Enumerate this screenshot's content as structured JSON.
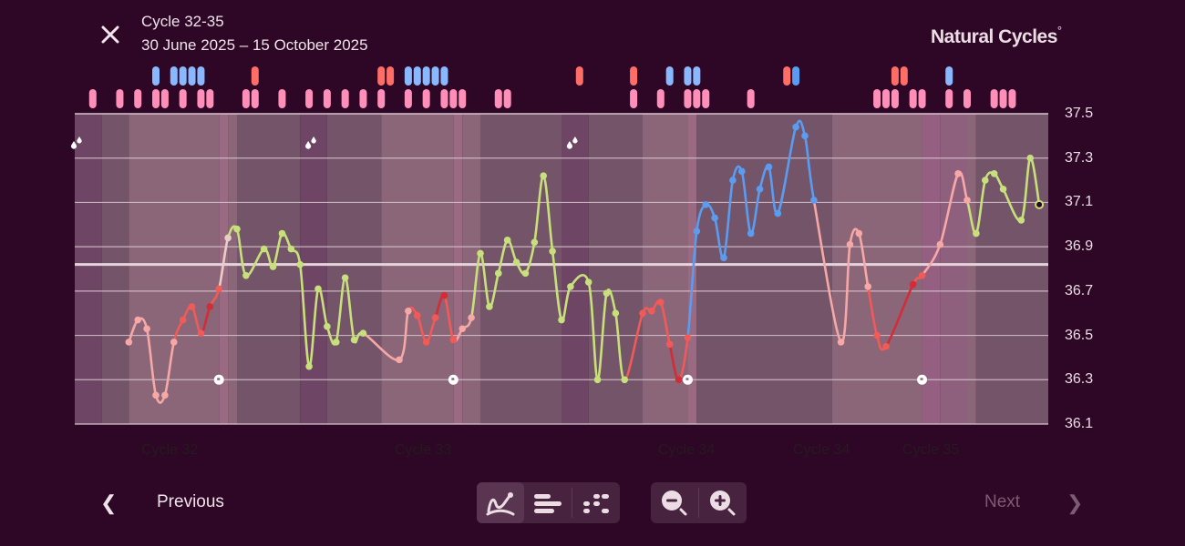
{
  "header": {
    "title": "Cycle 32-35",
    "subtitle": "30 June 2025 – 15 October 2025",
    "logo": "Natural Cycles",
    "logo_mark": "°",
    "close_icon": "close-icon"
  },
  "footer": {
    "previous_label": "Previous",
    "next_label": "Next",
    "next_enabled": false,
    "view_buttons": [
      {
        "name": "graph-view",
        "icon": "line-graph-icon",
        "active": true
      },
      {
        "name": "bars-view",
        "icon": "bars-icon",
        "active": false
      },
      {
        "name": "dots-view",
        "icon": "dots-icon",
        "active": false
      }
    ],
    "zoom_buttons": [
      {
        "name": "zoom-out",
        "icon": "zoom-out-icon"
      },
      {
        "name": "zoom-in",
        "icon": "zoom-in-icon"
      }
    ]
  },
  "colors": {
    "background": "#2e0626",
    "pink": "#f6a8a6",
    "red": "#f15a57",
    "darkred": "#d32c37",
    "green": "#c8e07c",
    "blue": "#5b9cf0",
    "beige": "#e7cfc6",
    "marker_pink": "#ff8fb8",
    "marker_red": "#ff6e66",
    "marker_blue": "#8ab8ff",
    "marker_darkblue": "#5b9cf0",
    "band_period": "#6e4565",
    "band_infertile": "#735468",
    "band_fertile": "#8a6678",
    "band_ovulation": "#9a6a82",
    "band_pink": "#955f82"
  },
  "chart_data": {
    "type": "line",
    "ylim": [
      36.1,
      37.5
    ],
    "yticks": [
      "37.5",
      "37.3",
      "37.1",
      "36.9",
      "36.7",
      "36.5",
      "36.3",
      "36.1"
    ],
    "coverline": 36.82,
    "grid": true,
    "xlim": [
      "2025-06-30",
      "2025-10-15"
    ],
    "cycle_labels": [
      "Cycle 32",
      "Cycle 33",
      "Cycle 34",
      "Cycle 34",
      "Cycle 35"
    ],
    "phases": [
      [
        "2025-06-30",
        "period"
      ],
      [
        "2025-07-03",
        "infertile"
      ],
      [
        "2025-07-06",
        "fertile"
      ],
      [
        "2025-07-16",
        "ovulation"
      ],
      [
        "2025-07-17",
        "fertile"
      ],
      [
        "2025-07-18",
        "infertile"
      ],
      [
        "2025-07-25",
        "period"
      ],
      [
        "2025-07-28",
        "infertile"
      ],
      [
        "2025-08-03",
        "fertile"
      ],
      [
        "2025-08-11",
        "ovulation"
      ],
      [
        "2025-08-12",
        "fertile"
      ],
      [
        "2025-08-14",
        "infertile"
      ],
      [
        "2025-08-23",
        "period"
      ],
      [
        "2025-08-26",
        "infertile"
      ],
      [
        "2025-09-01",
        "fertile"
      ],
      [
        "2025-09-06",
        "ovulation"
      ],
      [
        "2025-09-07",
        "infertile"
      ],
      [
        "2025-09-22",
        "fertile"
      ],
      [
        "2025-10-02",
        "pink"
      ],
      [
        "2025-10-04",
        "pinkish"
      ],
      [
        "2025-10-07",
        "fertile"
      ],
      [
        "2025-10-08",
        "infertile"
      ],
      [
        "2025-10-16",
        "end"
      ]
    ],
    "period_days": [
      "2025-06-30",
      "2025-07-26",
      "2025-08-24"
    ],
    "ovulation_days": [
      "2025-07-16",
      "2025-08-11",
      "2025-09-06",
      "2025-10-02"
    ],
    "points": [
      [
        "2025-07-06",
        36.47,
        "pink"
      ],
      [
        "2025-07-07",
        36.57,
        "pink"
      ],
      [
        "2025-07-08",
        36.53,
        "pink"
      ],
      [
        "2025-07-09",
        36.23,
        "pink"
      ],
      [
        "2025-07-10",
        36.23,
        "pink"
      ],
      [
        "2025-07-11",
        36.47,
        "pink"
      ],
      [
        "2025-07-12",
        36.57,
        "red"
      ],
      [
        "2025-07-13",
        36.63,
        "red"
      ],
      [
        "2025-07-14",
        36.51,
        "red"
      ],
      [
        "2025-07-15",
        36.63,
        "darkred"
      ],
      [
        "2025-07-16",
        36.71,
        "red"
      ],
      [
        "2025-07-17",
        36.94,
        "beige"
      ],
      [
        "2025-07-18",
        36.98,
        "green"
      ],
      [
        "2025-07-19",
        36.77,
        "green"
      ],
      [
        "2025-07-21",
        36.89,
        "green"
      ],
      [
        "2025-07-22",
        36.81,
        "green"
      ],
      [
        "2025-07-23",
        36.96,
        "green"
      ],
      [
        "2025-07-24",
        36.89,
        "green"
      ],
      [
        "2025-07-25",
        36.82,
        "green"
      ],
      [
        "2025-07-26",
        36.36,
        "green"
      ],
      [
        "2025-07-27",
        36.71,
        "green"
      ],
      [
        "2025-07-28",
        36.54,
        "green"
      ],
      [
        "2025-07-29",
        36.47,
        "green"
      ],
      [
        "2025-07-30",
        36.76,
        "green"
      ],
      [
        "2025-07-31",
        36.48,
        "green"
      ],
      [
        "2025-08-01",
        36.51,
        "green"
      ],
      [
        "2025-08-05",
        36.39,
        "pink"
      ],
      [
        "2025-08-06",
        36.61,
        "pink"
      ],
      [
        "2025-08-07",
        36.59,
        "red"
      ],
      [
        "2025-08-08",
        36.47,
        "red"
      ],
      [
        "2025-08-09",
        36.58,
        "red"
      ],
      [
        "2025-08-10",
        36.68,
        "darkred"
      ],
      [
        "2025-08-11",
        36.48,
        "red"
      ],
      [
        "2025-08-12",
        36.53,
        "pink"
      ],
      [
        "2025-08-13",
        36.58,
        "pink"
      ],
      [
        "2025-08-14",
        36.87,
        "green"
      ],
      [
        "2025-08-15",
        36.63,
        "green"
      ],
      [
        "2025-08-16",
        36.78,
        "green"
      ],
      [
        "2025-08-17",
        36.93,
        "green"
      ],
      [
        "2025-08-18",
        36.83,
        "green"
      ],
      [
        "2025-08-19",
        36.78,
        "green"
      ],
      [
        "2025-08-20",
        36.92,
        "green"
      ],
      [
        "2025-08-21",
        37.22,
        "green"
      ],
      [
        "2025-08-22",
        36.88,
        "green"
      ],
      [
        "2025-08-23",
        36.57,
        "green"
      ],
      [
        "2025-08-24",
        36.72,
        "green"
      ],
      [
        "2025-08-26",
        36.74,
        "green"
      ],
      [
        "2025-08-27",
        36.3,
        "green"
      ],
      [
        "2025-08-28",
        36.69,
        "green"
      ],
      [
        "2025-08-29",
        36.6,
        "green"
      ],
      [
        "2025-08-30",
        36.3,
        "green"
      ],
      [
        "2025-09-01",
        36.6,
        "red"
      ],
      [
        "2025-09-02",
        36.61,
        "red"
      ],
      [
        "2025-09-03",
        36.65,
        "red"
      ],
      [
        "2025-09-04",
        36.46,
        "red"
      ],
      [
        "2025-09-05",
        36.3,
        "darkred"
      ],
      [
        "2025-09-06",
        36.49,
        "red"
      ],
      [
        "2025-09-07",
        36.97,
        "blue"
      ],
      [
        "2025-09-08",
        37.09,
        "blue"
      ],
      [
        "2025-09-09",
        37.03,
        "blue"
      ],
      [
        "2025-09-10",
        36.85,
        "blue"
      ],
      [
        "2025-09-11",
        37.2,
        "blue"
      ],
      [
        "2025-09-12",
        37.24,
        "blue"
      ],
      [
        "2025-09-13",
        36.96,
        "blue"
      ],
      [
        "2025-09-14",
        37.16,
        "blue"
      ],
      [
        "2025-09-15",
        37.26,
        "blue"
      ],
      [
        "2025-09-16",
        37.05,
        "blue"
      ],
      [
        "2025-09-18",
        37.44,
        "blue"
      ],
      [
        "2025-09-19",
        37.4,
        "blue"
      ],
      [
        "2025-09-20",
        37.11,
        "blue"
      ],
      [
        "2025-09-23",
        36.47,
        "pink"
      ],
      [
        "2025-09-24",
        36.91,
        "pink"
      ],
      [
        "2025-09-25",
        36.96,
        "pink"
      ],
      [
        "2025-09-26",
        36.72,
        "pink"
      ],
      [
        "2025-09-27",
        36.5,
        "red"
      ],
      [
        "2025-09-28",
        36.45,
        "red"
      ],
      [
        "2025-10-01",
        36.73,
        "darkred"
      ],
      [
        "2025-10-02",
        36.77,
        "red"
      ],
      [
        "2025-10-04",
        36.91,
        "pink"
      ],
      [
        "2025-10-06",
        37.23,
        "pink"
      ],
      [
        "2025-10-07",
        37.11,
        "pink"
      ],
      [
        "2025-10-08",
        36.96,
        "green"
      ],
      [
        "2025-10-09",
        37.2,
        "green"
      ],
      [
        "2025-10-10",
        37.23,
        "green"
      ],
      [
        "2025-10-11",
        37.16,
        "green"
      ],
      [
        "2025-10-13",
        37.02,
        "green"
      ],
      [
        "2025-10-14",
        37.3,
        "green"
      ],
      [
        "2025-10-15",
        37.09,
        "today"
      ]
    ],
    "markers_top": [
      [
        "2025-07-09",
        "blue"
      ],
      [
        "2025-07-11",
        "blue"
      ],
      [
        "2025-07-12",
        "blue"
      ],
      [
        "2025-07-13",
        "blue"
      ],
      [
        "2025-07-14",
        "blue"
      ],
      [
        "2025-07-20",
        "red"
      ],
      [
        "2025-08-03",
        "red"
      ],
      [
        "2025-08-04",
        "red"
      ],
      [
        "2025-08-06",
        "blue"
      ],
      [
        "2025-08-07",
        "blue"
      ],
      [
        "2025-08-08",
        "blue"
      ],
      [
        "2025-08-09",
        "blue"
      ],
      [
        "2025-08-10",
        "blue"
      ],
      [
        "2025-08-25",
        "red"
      ],
      [
        "2025-08-31",
        "red"
      ],
      [
        "2025-09-04",
        "blue"
      ],
      [
        "2025-09-06",
        "blue"
      ],
      [
        "2025-09-07",
        "blue"
      ],
      [
        "2025-09-17",
        "red"
      ],
      [
        "2025-09-18",
        "darkblue"
      ],
      [
        "2025-09-29",
        "red"
      ],
      [
        "2025-09-30",
        "red"
      ],
      [
        "2025-10-05",
        "blue"
      ]
    ],
    "markers_bottom": [
      "2025-07-02",
      "2025-07-05",
      "2025-07-07",
      "2025-07-09",
      "2025-07-10",
      "2025-07-12",
      "2025-07-14",
      "2025-07-15",
      "2025-07-19",
      "2025-07-20",
      "2025-07-23",
      "2025-07-26",
      "2025-07-28",
      "2025-07-30",
      "2025-08-01",
      "2025-08-03",
      "2025-08-06",
      "2025-08-08",
      "2025-08-10",
      "2025-08-11",
      "2025-08-12",
      "2025-08-16",
      "2025-08-17",
      "2025-08-31",
      "2025-09-03",
      "2025-09-06",
      "2025-09-07",
      "2025-09-08",
      "2025-09-13",
      "2025-09-27",
      "2025-09-28",
      "2025-09-29",
      "2025-10-01",
      "2025-10-02",
      "2025-10-05",
      "2025-10-07",
      "2025-10-10",
      "2025-10-11",
      "2025-10-12"
    ]
  }
}
